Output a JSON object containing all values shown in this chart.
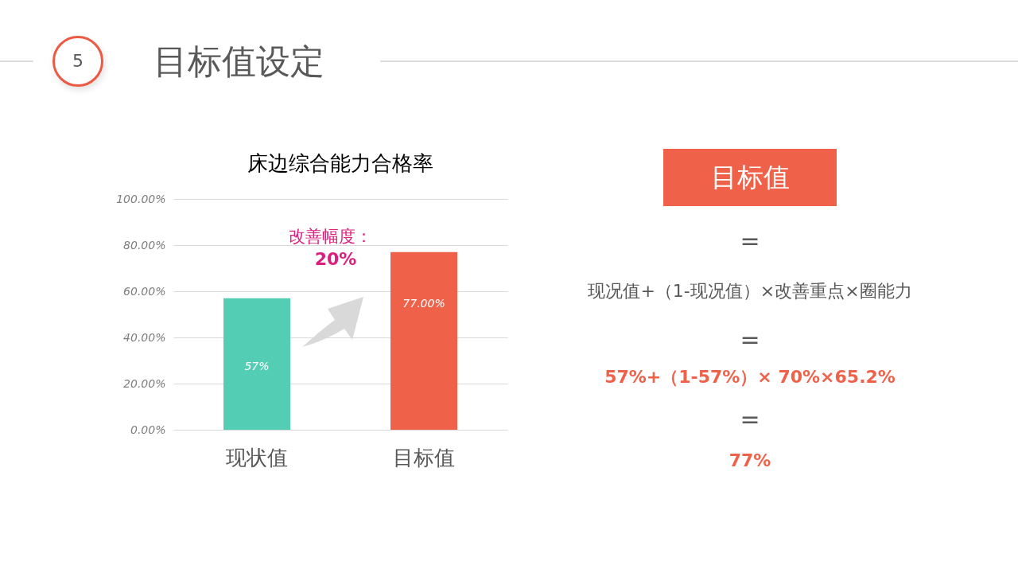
{
  "chart_data": [
    {
      "type": "other",
      "title": "目标值设定",
      "annotations": [
        "5"
      ]
    },
    {
      "type": "bar",
      "title": "床边综合能力合格率",
      "categories": [
        "现状值",
        "目标值"
      ],
      "values": [
        57,
        77
      ],
      "colors": [
        "#53cdb4",
        "#f0614a"
      ],
      "value_labels": [
        "57%",
        "77.00%"
      ],
      "ylim": [
        0,
        100
      ],
      "yticks": [
        {
          "value": 0,
          "label": "0.00%"
        },
        {
          "value": 20,
          "label": "20.00%"
        },
        {
          "value": 40,
          "label": "40.00%"
        },
        {
          "value": 60,
          "label": "60.00%"
        },
        {
          "value": 80,
          "label": "80.00%"
        },
        {
          "value": 100,
          "label": "100.00%"
        }
      ],
      "grid": "y",
      "annotations": [
        "改善幅度：",
        "20%"
      ]
    },
    {
      "type": "other",
      "title": "目标值",
      "annotations": [
        "=",
        "现况值+（1-现况值）×改善重点×圈能力",
        "=",
        "57%+（1-57%）× 70%×65.2%",
        "=",
        "77%"
      ]
    }
  ]
}
